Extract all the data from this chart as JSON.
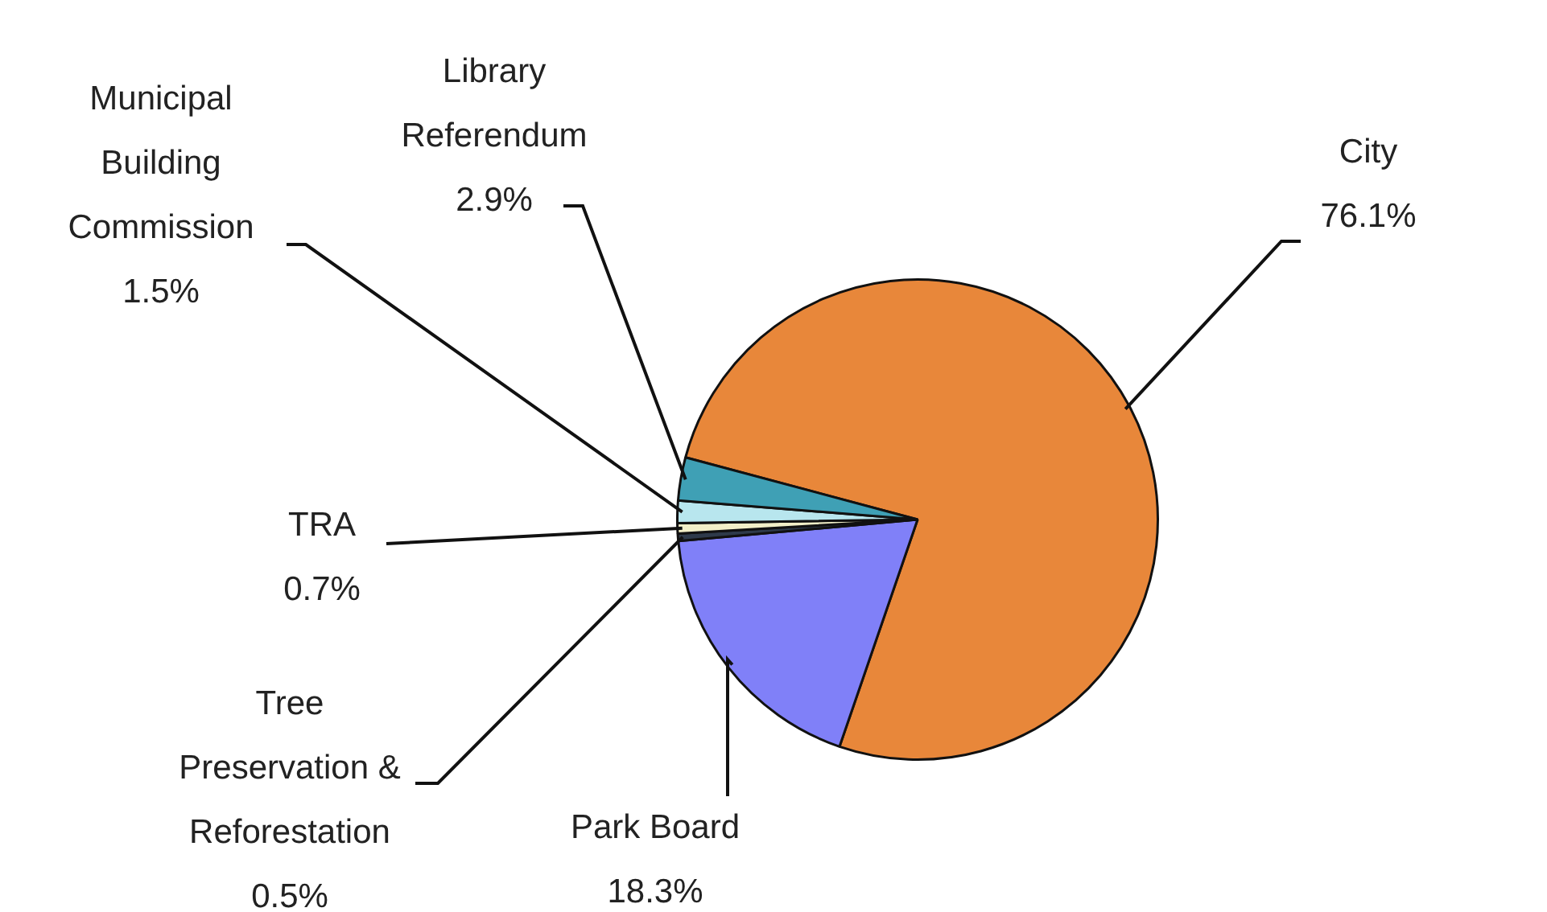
{
  "chart_data": {
    "type": "pie",
    "categories": [
      "City",
      "Park Board",
      "Tree Preservation & Reforestation",
      "TRA",
      "Municipal Building Commission",
      "Library Referendum"
    ],
    "values": [
      76.1,
      18.3,
      0.5,
      0.7,
      1.5,
      2.9
    ],
    "value_labels": [
      "76.1%",
      "18.3%",
      "0.5%",
      "0.7%",
      "1.5%",
      "2.9%"
    ],
    "colors": [
      "#e8873a",
      "#8080f8",
      "#2e3a4a",
      "#f2efc8",
      "#b8e6ee",
      "#3fa0b5"
    ],
    "legend": false
  }
}
